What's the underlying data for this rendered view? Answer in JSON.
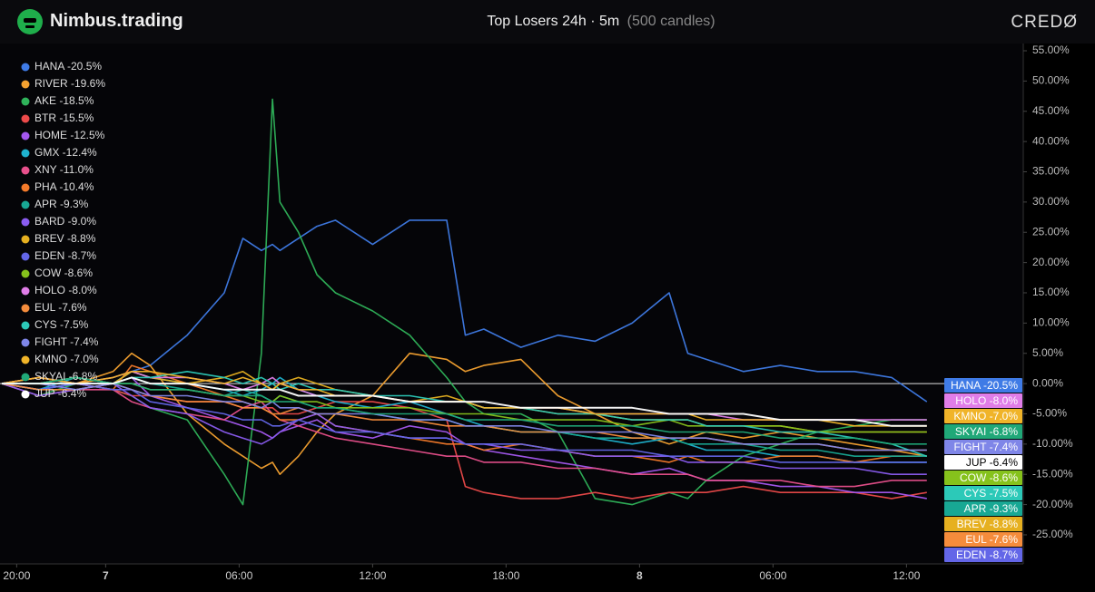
{
  "header": {
    "brand": "Nimbus.trading",
    "logo_text": "CREDØ"
  },
  "chart_data": {
    "type": "line",
    "title": "Top Losers 24h · 5m",
    "subtitle": "(500 candles)",
    "x": [
      0,
      20,
      40,
      60,
      70,
      80,
      100,
      120,
      130,
      140,
      146,
      150,
      160,
      170,
      180,
      200,
      220,
      240,
      250,
      260,
      280,
      300,
      320,
      340,
      360,
      370,
      380,
      400,
      420,
      440,
      460,
      480,
      499
    ],
    "xlim": [
      -1,
      551
    ],
    "xticks": [
      {
        "value": 8,
        "label": "20:00"
      },
      {
        "value": 56,
        "label": "7"
      },
      {
        "value": 128,
        "label": "06:00"
      },
      {
        "value": 200,
        "label": "12:00"
      },
      {
        "value": 272,
        "label": "18:00"
      },
      {
        "value": 344,
        "label": "8"
      },
      {
        "value": 416,
        "label": "06:00"
      },
      {
        "value": 488,
        "label": "12:00"
      }
    ],
    "ylim": [
      -29.8,
      56.2
    ],
    "yticks": [
      {
        "value": 55,
        "label": "55.00%"
      },
      {
        "value": 50,
        "label": "50.00%"
      },
      {
        "value": 45,
        "label": "45.00%"
      },
      {
        "value": 40,
        "label": "40.00%"
      },
      {
        "value": 35,
        "label": "35.00%"
      },
      {
        "value": 30,
        "label": "30.00%"
      },
      {
        "value": 25,
        "label": "25.00%"
      },
      {
        "value": 20,
        "label": "20.00%"
      },
      {
        "value": 15,
        "label": "15.00%"
      },
      {
        "value": 10,
        "label": "10.00%"
      },
      {
        "value": 5,
        "label": "5.00%"
      },
      {
        "value": 0,
        "label": "0.00%"
      },
      {
        "value": -5,
        "label": "-5.00%"
      },
      {
        "value": -10,
        "label": "-10.00%"
      },
      {
        "value": -15,
        "label": "-15.00%"
      },
      {
        "value": -20,
        "label": "-20.00%"
      },
      {
        "value": -25,
        "label": "-25.00%"
      }
    ],
    "legend": "top-left",
    "end_labels": [
      0,
      13,
      17,
      18,
      16,
      19,
      12,
      15,
      8,
      10,
      14,
      11
    ],
    "series": [
      {
        "name": "HANA -20.5%",
        "color": "#3f7be6",
        "values": [
          0,
          -1,
          0,
          0,
          2,
          3,
          8,
          15,
          24,
          22,
          23,
          22,
          24,
          26,
          27,
          23,
          27,
          27,
          8,
          9,
          6,
          8,
          7,
          10,
          15,
          5,
          4,
          2,
          3,
          2,
          2,
          1,
          -3
        ]
      },
      {
        "name": "RIVER -19.6%",
        "color": "#f5a230",
        "values": [
          0,
          1,
          0,
          2,
          5,
          3,
          -5,
          -10,
          -12,
          -14,
          -13,
          -15,
          -12,
          -8,
          -5,
          -2,
          5,
          4,
          2,
          3,
          4,
          -2,
          -5,
          -8,
          -10,
          -9,
          -8,
          -9,
          -8,
          -9,
          -10,
          -11,
          -12
        ]
      },
      {
        "name": "AKE -18.5%",
        "color": "#2fb35a",
        "values": [
          0,
          -2,
          0,
          -1,
          -2,
          -4,
          -6,
          -15,
          -20,
          5,
          47,
          30,
          25,
          18,
          15,
          12,
          8,
          1,
          -3,
          -5,
          -5,
          -8,
          -19,
          -20,
          -18,
          -19,
          -16,
          -12,
          -10,
          -8,
          -7,
          -6,
          -6
        ]
      },
      {
        "name": "BTR -15.5%",
        "color": "#ec4a4a",
        "values": [
          0,
          -1,
          0,
          -1,
          -2,
          -2,
          -3,
          -3,
          -4,
          -4,
          -4,
          -5,
          -5,
          -4,
          -3,
          -3,
          -4,
          -6,
          -17,
          -18,
          -19,
          -19,
          -18,
          -19,
          -18,
          -18,
          -18,
          -17,
          -18,
          -18,
          -18,
          -19,
          -18
        ]
      },
      {
        "name": "HOME -12.5%",
        "color": "#a558f0",
        "values": [
          0,
          -1,
          0,
          0,
          1,
          -2,
          -4,
          -6,
          -7,
          -8,
          -9,
          -8,
          -7,
          -6,
          -8,
          -9,
          -7,
          -8,
          -10,
          -11,
          -12,
          -13,
          -14,
          -15,
          -14,
          -15,
          -16,
          -16,
          -17,
          -17,
          -18,
          -18,
          -19
        ]
      },
      {
        "name": "GMX -12.4%",
        "color": "#1fb3cf",
        "values": [
          0,
          -1,
          1,
          0,
          2,
          1,
          0,
          -1,
          -2,
          -1,
          0,
          1,
          -1,
          -2,
          -3,
          -4,
          -3,
          -5,
          -6,
          -7,
          -8,
          -8,
          -9,
          -10,
          -9,
          -10,
          -11,
          -11,
          -12,
          -12,
          -13,
          -13,
          -13
        ]
      },
      {
        "name": "XNY -11.0%",
        "color": "#e8508c",
        "values": [
          0,
          -2,
          -1,
          -1,
          -3,
          -4,
          -5,
          -6,
          -4,
          -3,
          -5,
          -6,
          -7,
          -8,
          -9,
          -10,
          -11,
          -12,
          -12,
          -13,
          -13,
          -14,
          -14,
          -15,
          -15,
          -15,
          -16,
          -16,
          -16,
          -17,
          -17,
          -16,
          -16
        ]
      },
      {
        "name": "PHA -10.4%",
        "color": "#f47a2a",
        "values": [
          0,
          1,
          0,
          -1,
          3,
          2,
          0,
          -2,
          -3,
          -4,
          -5,
          -6,
          -6,
          -5,
          -7,
          -8,
          -9,
          -10,
          -10,
          -11,
          -10,
          -11,
          -12,
          -12,
          -13,
          -12,
          -13,
          -13,
          -12,
          -12,
          -13,
          -12,
          -12
        ]
      },
      {
        "name": "APR -9.3%",
        "color": "#18a894",
        "values": [
          0,
          -1,
          0,
          0,
          1,
          0,
          -1,
          -2,
          -1,
          -2,
          -3,
          -2,
          -3,
          -4,
          -4,
          -5,
          -6,
          -6,
          -7,
          -7,
          -8,
          -8,
          -9,
          -9,
          -9,
          -10,
          -10,
          -10,
          -11,
          -11,
          -12,
          -12,
          -12
        ]
      },
      {
        "name": "BARD -9.0%",
        "color": "#8a5cf0",
        "values": [
          0,
          -2,
          -1,
          0,
          -2,
          -4,
          -5,
          -8,
          -9,
          -10,
          -9,
          -8,
          -6,
          -5,
          -7,
          -8,
          -9,
          -9,
          -10,
          -10,
          -11,
          -11,
          -12,
          -12,
          -12,
          -13,
          -13,
          -13,
          -14,
          -14,
          -14,
          -15,
          -15
        ]
      },
      {
        "name": "BREV -8.8%",
        "color": "#e6b020",
        "values": [
          0,
          0,
          1,
          0,
          2,
          1,
          0,
          1,
          2,
          0,
          -1,
          0,
          1,
          0,
          -1,
          -2,
          -3,
          -2,
          -3,
          -4,
          -4,
          -5,
          -5,
          -6,
          -6,
          -6,
          -7,
          -7,
          -7,
          -8,
          -8,
          -8,
          -8
        ]
      },
      {
        "name": "EDEN -8.7%",
        "color": "#6366e8",
        "values": [
          0,
          -1,
          0,
          -1,
          -1,
          -3,
          -4,
          -5,
          -6,
          -6,
          -7,
          -7,
          -6,
          -7,
          -8,
          -8,
          -9,
          -9,
          -10,
          -10,
          -10,
          -11,
          -11,
          -11,
          -12,
          -12,
          -12,
          -12,
          -13,
          -13,
          -13,
          -13,
          -13
        ]
      },
      {
        "name": "COW -8.6%",
        "color": "#86c21c",
        "values": [
          0,
          0,
          1,
          0,
          0,
          -1,
          -1,
          -2,
          -2,
          -3,
          -3,
          -2,
          -3,
          -3,
          -4,
          -4,
          -4,
          -5,
          -5,
          -5,
          -6,
          -6,
          -6,
          -7,
          -6,
          -7,
          -7,
          -7,
          -7,
          -8,
          -8,
          -8,
          -8
        ]
      },
      {
        "name": "HOLO -8.0%",
        "color": "#e07de8",
        "values": [
          0,
          1,
          0,
          1,
          2,
          1,
          1,
          0,
          -1,
          0,
          1,
          0,
          -1,
          -2,
          -2,
          -2,
          -3,
          -3,
          -3,
          -4,
          -4,
          -4,
          -5,
          -5,
          -5,
          -5,
          -5,
          -6,
          -6,
          -6,
          -6,
          -6,
          -6
        ]
      },
      {
        "name": "EUL -7.6%",
        "color": "#f58c3c",
        "values": [
          0,
          -1,
          -1,
          0,
          -1,
          -2,
          -3,
          -3,
          -4,
          -4,
          -5,
          -5,
          -4,
          -5,
          -5,
          -6,
          -6,
          -7,
          -7,
          -7,
          -8,
          -8,
          -8,
          -9,
          -9,
          -9,
          -9,
          -10,
          -10,
          -10,
          -11,
          -11,
          -11
        ]
      },
      {
        "name": "CYS -7.5%",
        "color": "#2cc9b8",
        "values": [
          0,
          0,
          1,
          0,
          1,
          1,
          2,
          1,
          0,
          1,
          0,
          -1,
          0,
          -1,
          -1,
          -2,
          -2,
          -3,
          -3,
          -4,
          -4,
          -5,
          -5,
          -6,
          -6,
          -6,
          -7,
          -7,
          -8,
          -8,
          -9,
          -10,
          -12
        ]
      },
      {
        "name": "FIGHT -7.4%",
        "color": "#7f86e8",
        "values": [
          0,
          0,
          -1,
          0,
          -1,
          -2,
          -2,
          -3,
          -3,
          -4,
          -3,
          -4,
          -4,
          -5,
          -5,
          -5,
          -6,
          -6,
          -7,
          -7,
          -7,
          -8,
          -8,
          -8,
          -9,
          -9,
          -9,
          -10,
          -10,
          -10,
          -11,
          -11,
          -11
        ]
      },
      {
        "name": "KMNO -7.0%",
        "color": "#f0b429",
        "values": [
          0,
          1,
          0,
          1,
          2,
          2,
          1,
          0,
          1,
          0,
          -1,
          0,
          -1,
          -1,
          -2,
          -2,
          -3,
          -3,
          -3,
          -4,
          -4,
          -4,
          -5,
          -5,
          -5,
          -5,
          -6,
          -6,
          -6,
          -6,
          -7,
          -7,
          -7
        ]
      },
      {
        "name": "SKYAI -6.8%",
        "color": "#20a878",
        "values": [
          0,
          0,
          1,
          0,
          0,
          -1,
          -1,
          -2,
          -2,
          -2,
          -3,
          -3,
          -3,
          -4,
          -4,
          -5,
          -5,
          -5,
          -6,
          -6,
          -6,
          -7,
          -7,
          -7,
          -8,
          -8,
          -8,
          -8,
          -9,
          -9,
          -9,
          -10,
          -10
        ]
      },
      {
        "name": "JUP -6.4%",
        "color": "#ffffff",
        "values": [
          0,
          0,
          0,
          0,
          1,
          0,
          0,
          -1,
          -1,
          -1,
          -1,
          -1,
          -2,
          -2,
          -2,
          -2,
          -3,
          -3,
          -3,
          -3,
          -4,
          -4,
          -4,
          -4,
          -5,
          -5,
          -5,
          -5,
          -6,
          -6,
          -6,
          -7,
          -7
        ]
      }
    ]
  }
}
